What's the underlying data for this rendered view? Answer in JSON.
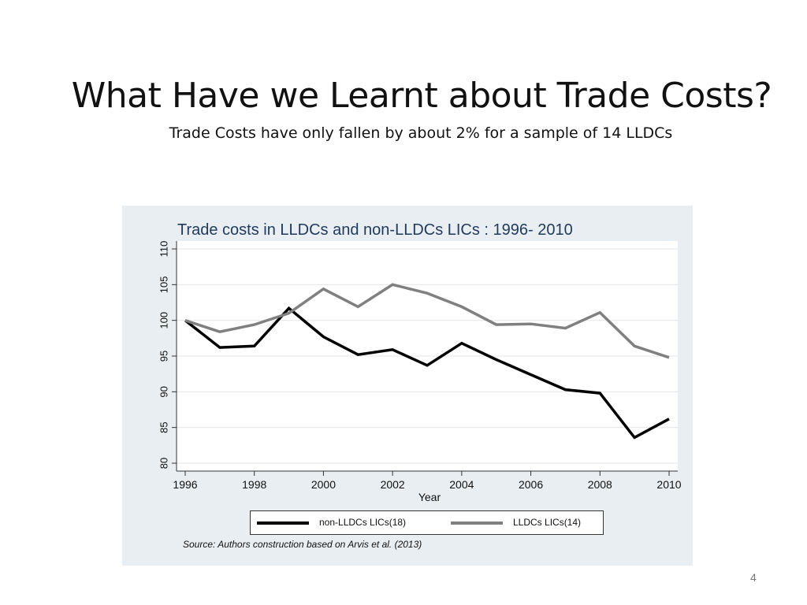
{
  "slide": {
    "title": "What Have we Learnt about Trade Costs?",
    "subtitle": "Trade Costs have only  fallen by about 2%  for a sample of 14  LLDCs",
    "page_number": "4"
  },
  "chart_data": {
    "type": "line",
    "title": "Trade costs in LLDCs and non-LLDCs LICs : 1996- 2010",
    "xlabel": "Year",
    "ylabel": "",
    "x": [
      1996,
      1997,
      1998,
      1999,
      2000,
      2001,
      2002,
      2003,
      2004,
      2005,
      2006,
      2007,
      2008,
      2009,
      2010
    ],
    "xlim": [
      1996,
      2010
    ],
    "ylim": [
      80,
      110
    ],
    "xticks": [
      1996,
      1998,
      2000,
      2002,
      2004,
      2006,
      2008,
      2010
    ],
    "yticks": [
      80,
      85,
      90,
      95,
      100,
      105,
      110
    ],
    "grid": true,
    "legend_position": "bottom",
    "series": [
      {
        "name": "non-LLDCs LICs(18)",
        "color": "#000000",
        "values": [
          100,
          96.2,
          96.4,
          101.7,
          97.7,
          95.2,
          95.9,
          93.7,
          96.8,
          94.5,
          92.4,
          90.3,
          89.8,
          83.6,
          86.2
        ]
      },
      {
        "name": "LLDCs LICs(14)",
        "color": "#808080",
        "values": [
          100,
          98.4,
          99.4,
          101,
          104.4,
          101.9,
          105,
          103.8,
          101.9,
          99.4,
          99.5,
          98.9,
          101.1,
          96.4,
          94.8
        ]
      }
    ],
    "source": "Source: Authors construction based on Arvis et al. (2013)"
  }
}
